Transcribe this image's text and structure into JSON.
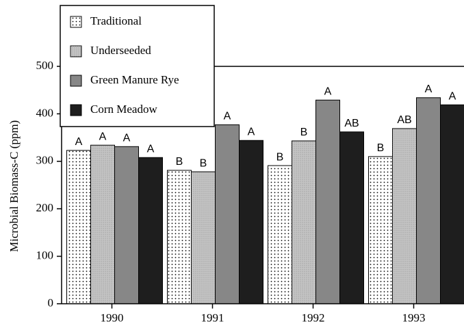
{
  "chart_data": {
    "type": "bar",
    "ylabel": "Microbial Biomass-C (ppm)",
    "categories": [
      "1990",
      "1991",
      "1992",
      "1993"
    ],
    "series": [
      {
        "name": "Traditional",
        "color": "#ffffff",
        "values": [
          323,
          281,
          291,
          310
        ],
        "labels": [
          "A",
          "B",
          "B",
          "B"
        ]
      },
      {
        "name": "Underseeded",
        "color": "#c4c4c4",
        "values": [
          334,
          278,
          343,
          369
        ],
        "labels": [
          "A",
          "B",
          "B",
          "AB"
        ]
      },
      {
        "name": "Green Manure Rye",
        "color": "#878787",
        "values": [
          331,
          377,
          429,
          434
        ],
        "labels": [
          "A",
          "A",
          "A",
          "A"
        ]
      },
      {
        "name": "Corn Meadow",
        "color": "#1e1e1e",
        "values": [
          308,
          344,
          362,
          419
        ],
        "labels": [
          "A",
          "A",
          "AB",
          "A"
        ]
      }
    ],
    "ylim": [
      0,
      500
    ],
    "yticks": [
      0,
      100,
      200,
      300,
      400,
      500
    ]
  }
}
